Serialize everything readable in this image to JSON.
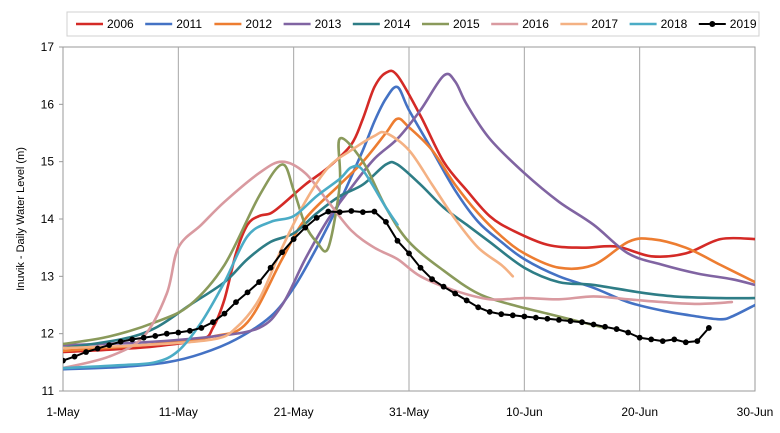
{
  "chart_data": {
    "type": "line",
    "title": "",
    "xlabel": "",
    "ylabel": "Inuvik - Daily Water Level (m)",
    "xlim": [
      "2019-05-01",
      "2019-06-30"
    ],
    "ylim": [
      11,
      17
    ],
    "grid": "vertical gridlines at each x tick",
    "legend_position": "top",
    "x_ticks": [
      "2019-05-01",
      "2019-05-11",
      "2019-05-21",
      "2019-05-31",
      "2019-06-10",
      "2019-06-20",
      "2019-06-30"
    ],
    "x_tick_labels": [
      "1-May",
      "11-May",
      "21-May",
      "31-May",
      "10-Jun",
      "20-Jun",
      "30-Jun"
    ],
    "y_ticks": [
      11,
      12,
      13,
      14,
      15,
      16,
      17
    ],
    "y_tick_labels": [
      "11",
      "12",
      "13",
      "14",
      "15",
      "16",
      "17"
    ],
    "series": [
      {
        "name": "2006",
        "color": "#d42a26",
        "points": [
          [
            "2019-05-01",
            11.68
          ],
          [
            "2019-05-05",
            11.72
          ],
          [
            "2019-05-09",
            11.78
          ],
          [
            "2019-05-13",
            11.9
          ],
          [
            "2019-05-14",
            12.1
          ],
          [
            "2019-05-15",
            12.6
          ],
          [
            "2019-05-16",
            13.4
          ],
          [
            "2019-05-17",
            13.9
          ],
          [
            "2019-05-18",
            14.05
          ],
          [
            "2019-05-19",
            14.1
          ],
          [
            "2019-05-20",
            14.25
          ],
          [
            "2019-05-22",
            14.6
          ],
          [
            "2019-05-24",
            14.9
          ],
          [
            "2019-05-26",
            15.3
          ],
          [
            "2019-05-27",
            15.75
          ],
          [
            "2019-05-28",
            16.3
          ],
          [
            "2019-05-29",
            16.55
          ],
          [
            "2019-05-30",
            16.5
          ],
          [
            "2019-06-01",
            15.8
          ],
          [
            "2019-06-03",
            15.0
          ],
          [
            "2019-06-05",
            14.5
          ],
          [
            "2019-06-07",
            14.05
          ],
          [
            "2019-06-09",
            13.8
          ],
          [
            "2019-06-12",
            13.55
          ],
          [
            "2019-06-15",
            13.5
          ],
          [
            "2019-06-18",
            13.52
          ],
          [
            "2019-06-21",
            13.35
          ],
          [
            "2019-06-24",
            13.4
          ],
          [
            "2019-06-27",
            13.65
          ],
          [
            "2019-06-30",
            13.65
          ]
        ]
      },
      {
        "name": "2011",
        "color": "#4472c4",
        "points": [
          [
            "2019-05-01",
            11.38
          ],
          [
            "2019-05-06",
            11.42
          ],
          [
            "2019-05-10",
            11.5
          ],
          [
            "2019-05-13",
            11.65
          ],
          [
            "2019-05-16",
            11.9
          ],
          [
            "2019-05-19",
            12.3
          ],
          [
            "2019-05-21",
            12.8
          ],
          [
            "2019-05-23",
            13.5
          ],
          [
            "2019-05-25",
            14.3
          ],
          [
            "2019-05-27",
            15.2
          ],
          [
            "2019-05-28",
            15.7
          ],
          [
            "2019-05-29",
            16.1
          ],
          [
            "2019-05-30",
            16.3
          ],
          [
            "2019-05-31",
            15.9
          ],
          [
            "2019-06-02",
            15.2
          ],
          [
            "2019-06-04",
            14.5
          ],
          [
            "2019-06-06",
            13.95
          ],
          [
            "2019-06-08",
            13.6
          ],
          [
            "2019-06-10",
            13.3
          ],
          [
            "2019-06-13",
            13.0
          ],
          [
            "2019-06-16",
            12.8
          ],
          [
            "2019-06-19",
            12.55
          ],
          [
            "2019-06-22",
            12.4
          ],
          [
            "2019-06-25",
            12.3
          ],
          [
            "2019-06-27",
            12.25
          ],
          [
            "2019-06-28",
            12.3
          ],
          [
            "2019-06-30",
            12.5
          ]
        ]
      },
      {
        "name": "2012",
        "color": "#ed7d31",
        "points": [
          [
            "2019-05-01",
            11.7
          ],
          [
            "2019-05-08",
            11.8
          ],
          [
            "2019-05-14",
            11.95
          ],
          [
            "2019-05-17",
            12.2
          ],
          [
            "2019-05-20",
            13.3
          ],
          [
            "2019-05-22",
            14.0
          ],
          [
            "2019-05-25",
            14.6
          ],
          [
            "2019-05-27",
            15.0
          ],
          [
            "2019-05-29",
            15.5
          ],
          [
            "2019-05-30",
            15.75
          ],
          [
            "2019-05-31",
            15.6
          ],
          [
            "2019-06-02",
            15.2
          ],
          [
            "2019-06-04",
            14.6
          ],
          [
            "2019-06-06",
            14.1
          ],
          [
            "2019-06-08",
            13.7
          ],
          [
            "2019-06-10",
            13.4
          ],
          [
            "2019-06-13",
            13.15
          ],
          [
            "2019-06-16",
            13.2
          ],
          [
            "2019-06-19",
            13.6
          ],
          [
            "2019-06-21",
            13.65
          ],
          [
            "2019-06-24",
            13.5
          ],
          [
            "2019-06-27",
            13.2
          ],
          [
            "2019-06-30",
            12.9
          ]
        ]
      },
      {
        "name": "2013",
        "color": "#8064a2",
        "points": [
          [
            "2019-05-01",
            11.8
          ],
          [
            "2019-05-08",
            11.85
          ],
          [
            "2019-05-14",
            11.95
          ],
          [
            "2019-05-18",
            12.1
          ],
          [
            "2019-05-20",
            12.5
          ],
          [
            "2019-05-22",
            13.3
          ],
          [
            "2019-05-24",
            14.0
          ],
          [
            "2019-05-26",
            14.55
          ],
          [
            "2019-05-28",
            15.05
          ],
          [
            "2019-05-30",
            15.4
          ],
          [
            "2019-06-01",
            15.9
          ],
          [
            "2019-06-03",
            16.5
          ],
          [
            "2019-06-04",
            16.4
          ],
          [
            "2019-06-05",
            16.0
          ],
          [
            "2019-06-07",
            15.4
          ],
          [
            "2019-06-10",
            14.8
          ],
          [
            "2019-06-13",
            14.3
          ],
          [
            "2019-06-16",
            13.9
          ],
          [
            "2019-06-19",
            13.4
          ],
          [
            "2019-06-22",
            13.2
          ],
          [
            "2019-06-25",
            13.05
          ],
          [
            "2019-06-28",
            12.95
          ],
          [
            "2019-06-30",
            12.85
          ]
        ]
      },
      {
        "name": "2014",
        "color": "#2e7d86",
        "points": [
          [
            "2019-05-01",
            11.75
          ],
          [
            "2019-05-06",
            11.9
          ],
          [
            "2019-05-09",
            12.1
          ],
          [
            "2019-05-12",
            12.5
          ],
          [
            "2019-05-15",
            12.9
          ],
          [
            "2019-05-17",
            13.3
          ],
          [
            "2019-05-19",
            13.6
          ],
          [
            "2019-05-21",
            13.75
          ],
          [
            "2019-05-23",
            14.1
          ],
          [
            "2019-05-25",
            14.4
          ],
          [
            "2019-05-27",
            14.6
          ],
          [
            "2019-05-29",
            14.95
          ],
          [
            "2019-05-30",
            14.95
          ],
          [
            "2019-06-01",
            14.6
          ],
          [
            "2019-06-03",
            14.2
          ],
          [
            "2019-06-05",
            13.9
          ],
          [
            "2019-06-07",
            13.6
          ],
          [
            "2019-06-10",
            13.15
          ],
          [
            "2019-06-13",
            12.9
          ],
          [
            "2019-06-16",
            12.85
          ],
          [
            "2019-06-20",
            12.72
          ],
          [
            "2019-06-23",
            12.65
          ],
          [
            "2019-06-27",
            12.62
          ],
          [
            "2019-06-30",
            12.62
          ]
        ]
      },
      {
        "name": "2015",
        "color": "#8a9a5b",
        "points": [
          [
            "2019-05-01",
            11.82
          ],
          [
            "2019-05-05",
            11.95
          ],
          [
            "2019-05-09",
            12.2
          ],
          [
            "2019-05-12",
            12.5
          ],
          [
            "2019-05-15",
            13.2
          ],
          [
            "2019-05-18",
            14.4
          ],
          [
            "2019-05-20",
            14.95
          ],
          [
            "2019-05-21",
            14.5
          ],
          [
            "2019-05-22",
            13.9
          ],
          [
            "2019-05-23",
            13.6
          ],
          [
            "2019-05-24",
            13.5
          ],
          [
            "2019-05-25",
            14.6
          ],
          [
            "2019-05-25",
            15.4
          ],
          [
            "2019-05-27",
            15.0
          ],
          [
            "2019-05-29",
            14.2
          ],
          [
            "2019-05-31",
            13.6
          ],
          [
            "2019-06-03",
            13.1
          ],
          [
            "2019-06-06",
            12.7
          ],
          [
            "2019-06-09",
            12.5
          ],
          [
            "2019-06-12",
            12.35
          ],
          [
            "2019-06-15",
            12.2
          ],
          [
            "2019-06-17",
            12.1
          ]
        ]
      },
      {
        "name": "2016",
        "color": "#d99aa0",
        "points": [
          [
            "2019-05-01",
            11.4
          ],
          [
            "2019-05-05",
            11.6
          ],
          [
            "2019-05-08",
            11.95
          ],
          [
            "2019-05-10",
            12.7
          ],
          [
            "2019-05-11",
            13.5
          ],
          [
            "2019-05-13",
            13.9
          ],
          [
            "2019-05-15",
            14.3
          ],
          [
            "2019-05-18",
            14.8
          ],
          [
            "2019-05-20",
            15.0
          ],
          [
            "2019-05-22",
            14.8
          ],
          [
            "2019-05-24",
            14.3
          ],
          [
            "2019-05-26",
            13.8
          ],
          [
            "2019-05-28",
            13.5
          ],
          [
            "2019-05-30",
            13.3
          ],
          [
            "2019-06-01",
            13.0
          ],
          [
            "2019-06-04",
            12.75
          ],
          [
            "2019-06-07",
            12.6
          ],
          [
            "2019-06-10",
            12.62
          ],
          [
            "2019-06-13",
            12.6
          ],
          [
            "2019-06-16",
            12.65
          ],
          [
            "2019-06-19",
            12.6
          ],
          [
            "2019-06-22",
            12.55
          ],
          [
            "2019-06-25",
            12.52
          ],
          [
            "2019-06-28",
            12.55
          ]
        ]
      },
      {
        "name": "2017",
        "color": "#f4b183",
        "points": [
          [
            "2019-05-01",
            11.75
          ],
          [
            "2019-05-08",
            11.8
          ],
          [
            "2019-05-14",
            11.9
          ],
          [
            "2019-05-16",
            12.1
          ],
          [
            "2019-05-18",
            12.6
          ],
          [
            "2019-05-20",
            13.5
          ],
          [
            "2019-05-22",
            14.3
          ],
          [
            "2019-05-24",
            14.9
          ],
          [
            "2019-05-26",
            15.2
          ],
          [
            "2019-05-28",
            15.45
          ],
          [
            "2019-05-29",
            15.5
          ],
          [
            "2019-05-31",
            15.2
          ],
          [
            "2019-06-02",
            14.6
          ],
          [
            "2019-06-04",
            14.0
          ],
          [
            "2019-06-06",
            13.5
          ],
          [
            "2019-06-08",
            13.2
          ],
          [
            "2019-06-09",
            13.0
          ]
        ]
      },
      {
        "name": "2018",
        "color": "#4bacc6",
        "points": [
          [
            "2019-05-01",
            11.4
          ],
          [
            "2019-05-06",
            11.45
          ],
          [
            "2019-05-09",
            11.5
          ],
          [
            "2019-05-11",
            11.7
          ],
          [
            "2019-05-13",
            12.2
          ],
          [
            "2019-05-15",
            12.9
          ],
          [
            "2019-05-17",
            13.7
          ],
          [
            "2019-05-19",
            13.95
          ],
          [
            "2019-05-21",
            14.05
          ],
          [
            "2019-05-23",
            14.4
          ],
          [
            "2019-05-25",
            14.7
          ],
          [
            "2019-05-26",
            14.9
          ],
          [
            "2019-05-27",
            14.85
          ],
          [
            "2019-05-29",
            14.2
          ],
          [
            "2019-05-30",
            13.9
          ]
        ]
      },
      {
        "name": "2019",
        "color": "#000000",
        "markers": true,
        "points": [
          [
            "2019-05-01",
            11.53
          ],
          [
            "2019-05-02",
            11.6
          ],
          [
            "2019-05-03",
            11.68
          ],
          [
            "2019-05-04",
            11.74
          ],
          [
            "2019-05-05",
            11.8
          ],
          [
            "2019-05-06",
            11.86
          ],
          [
            "2019-05-07",
            11.9
          ],
          [
            "2019-05-08",
            11.93
          ],
          [
            "2019-05-09",
            11.96
          ],
          [
            "2019-05-10",
            12.0
          ],
          [
            "2019-05-11",
            12.02
          ],
          [
            "2019-05-12",
            12.05
          ],
          [
            "2019-05-13",
            12.1
          ],
          [
            "2019-05-14",
            12.2
          ],
          [
            "2019-05-15",
            12.35
          ],
          [
            "2019-05-16",
            12.55
          ],
          [
            "2019-05-17",
            12.72
          ],
          [
            "2019-05-18",
            12.9
          ],
          [
            "2019-05-19",
            13.15
          ],
          [
            "2019-05-20",
            13.42
          ],
          [
            "2019-05-21",
            13.65
          ],
          [
            "2019-05-22",
            13.85
          ],
          [
            "2019-05-23",
            14.02
          ],
          [
            "2019-05-24",
            14.13
          ],
          [
            "2019-05-25",
            14.12
          ],
          [
            "2019-05-26",
            14.14
          ],
          [
            "2019-05-27",
            14.12
          ],
          [
            "2019-05-28",
            14.13
          ],
          [
            "2019-05-29",
            13.95
          ],
          [
            "2019-05-30",
            13.62
          ],
          [
            "2019-05-31",
            13.4
          ],
          [
            "2019-06-01",
            13.15
          ],
          [
            "2019-06-02",
            12.95
          ],
          [
            "2019-06-03",
            12.82
          ],
          [
            "2019-06-04",
            12.7
          ],
          [
            "2019-06-05",
            12.58
          ],
          [
            "2019-06-06",
            12.46
          ],
          [
            "2019-06-07",
            12.38
          ],
          [
            "2019-06-08",
            12.34
          ],
          [
            "2019-06-09",
            12.32
          ],
          [
            "2019-06-10",
            12.3
          ],
          [
            "2019-06-11",
            12.28
          ],
          [
            "2019-06-12",
            12.26
          ],
          [
            "2019-06-13",
            12.24
          ],
          [
            "2019-06-14",
            12.22
          ],
          [
            "2019-06-15",
            12.2
          ],
          [
            "2019-06-16",
            12.16
          ],
          [
            "2019-06-17",
            12.12
          ],
          [
            "2019-06-18",
            12.08
          ],
          [
            "2019-06-19",
            12.02
          ],
          [
            "2019-06-20",
            11.93
          ],
          [
            "2019-06-21",
            11.9
          ],
          [
            "2019-06-22",
            11.87
          ],
          [
            "2019-06-23",
            11.9
          ],
          [
            "2019-06-24",
            11.85
          ],
          [
            "2019-06-25",
            11.87
          ],
          [
            "2019-06-26",
            12.1
          ]
        ]
      }
    ]
  }
}
